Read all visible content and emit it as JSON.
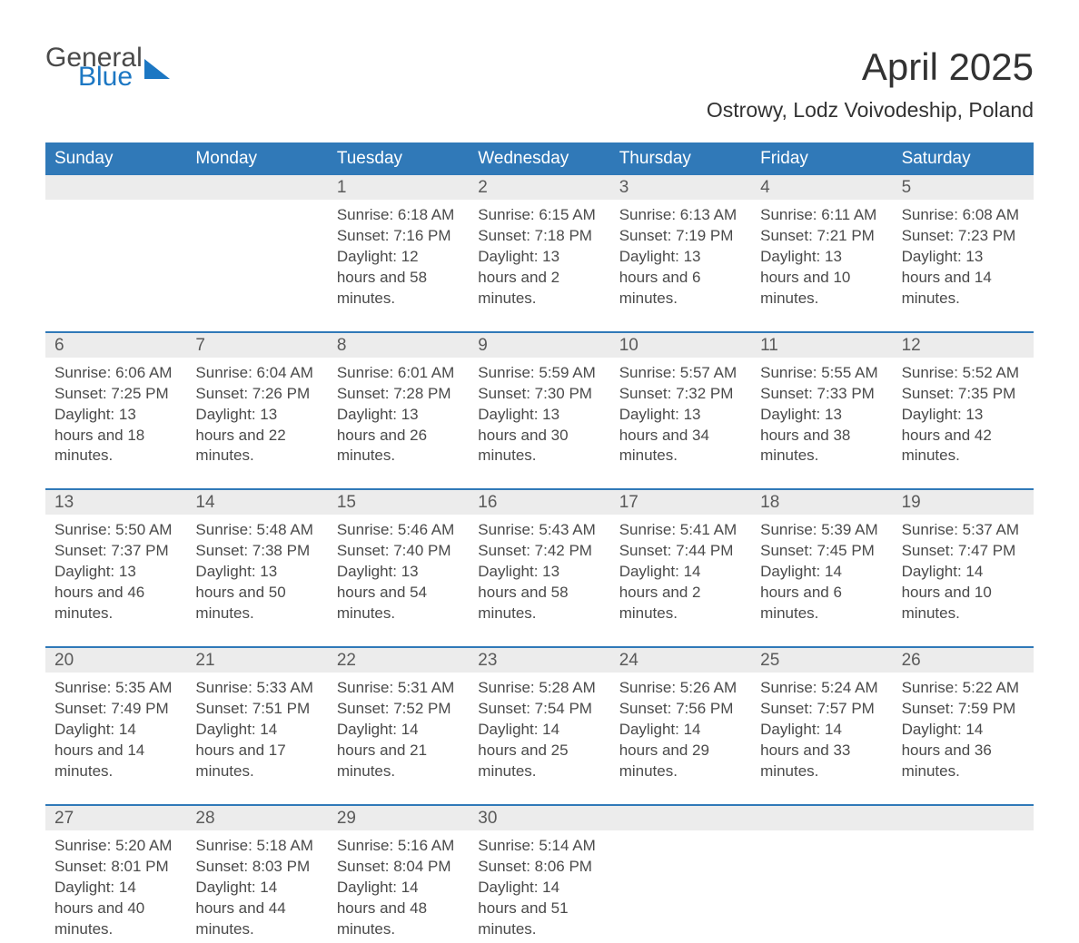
{
  "logo": {
    "line1": "General",
    "line2": "Blue"
  },
  "title": "April 2025",
  "location": "Ostrowy, Lodz Voivodeship, Poland",
  "colors": {
    "header_bg": "#3079b8",
    "header_text": "#ffffff",
    "daynum_bg": "#ececec",
    "text": "#4a4a4a",
    "rule": "#3079b8",
    "logo_blue": "#1c77c3",
    "background": "#ffffff"
  },
  "weekdays": [
    "Sunday",
    "Monday",
    "Tuesday",
    "Wednesday",
    "Thursday",
    "Friday",
    "Saturday"
  ],
  "weeks": [
    {
      "days": [
        {
          "n": "",
          "lines": []
        },
        {
          "n": "",
          "lines": []
        },
        {
          "n": "1",
          "lines": [
            "Sunrise: 6:18 AM",
            "Sunset: 7:16 PM",
            "Daylight: 12 hours and 58 minutes."
          ]
        },
        {
          "n": "2",
          "lines": [
            "Sunrise: 6:15 AM",
            "Sunset: 7:18 PM",
            "Daylight: 13 hours and 2 minutes."
          ]
        },
        {
          "n": "3",
          "lines": [
            "Sunrise: 6:13 AM",
            "Sunset: 7:19 PM",
            "Daylight: 13 hours and 6 minutes."
          ]
        },
        {
          "n": "4",
          "lines": [
            "Sunrise: 6:11 AM",
            "Sunset: 7:21 PM",
            "Daylight: 13 hours and 10 minutes."
          ]
        },
        {
          "n": "5",
          "lines": [
            "Sunrise: 6:08 AM",
            "Sunset: 7:23 PM",
            "Daylight: 13 hours and 14 minutes."
          ]
        }
      ]
    },
    {
      "days": [
        {
          "n": "6",
          "lines": [
            "Sunrise: 6:06 AM",
            "Sunset: 7:25 PM",
            "Daylight: 13 hours and 18 minutes."
          ]
        },
        {
          "n": "7",
          "lines": [
            "Sunrise: 6:04 AM",
            "Sunset: 7:26 PM",
            "Daylight: 13 hours and 22 minutes."
          ]
        },
        {
          "n": "8",
          "lines": [
            "Sunrise: 6:01 AM",
            "Sunset: 7:28 PM",
            "Daylight: 13 hours and 26 minutes."
          ]
        },
        {
          "n": "9",
          "lines": [
            "Sunrise: 5:59 AM",
            "Sunset: 7:30 PM",
            "Daylight: 13 hours and 30 minutes."
          ]
        },
        {
          "n": "10",
          "lines": [
            "Sunrise: 5:57 AM",
            "Sunset: 7:32 PM",
            "Daylight: 13 hours and 34 minutes."
          ]
        },
        {
          "n": "11",
          "lines": [
            "Sunrise: 5:55 AM",
            "Sunset: 7:33 PM",
            "Daylight: 13 hours and 38 minutes."
          ]
        },
        {
          "n": "12",
          "lines": [
            "Sunrise: 5:52 AM",
            "Sunset: 7:35 PM",
            "Daylight: 13 hours and 42 minutes."
          ]
        }
      ]
    },
    {
      "days": [
        {
          "n": "13",
          "lines": [
            "Sunrise: 5:50 AM",
            "Sunset: 7:37 PM",
            "Daylight: 13 hours and 46 minutes."
          ]
        },
        {
          "n": "14",
          "lines": [
            "Sunrise: 5:48 AM",
            "Sunset: 7:38 PM",
            "Daylight: 13 hours and 50 minutes."
          ]
        },
        {
          "n": "15",
          "lines": [
            "Sunrise: 5:46 AM",
            "Sunset: 7:40 PM",
            "Daylight: 13 hours and 54 minutes."
          ]
        },
        {
          "n": "16",
          "lines": [
            "Sunrise: 5:43 AM",
            "Sunset: 7:42 PM",
            "Daylight: 13 hours and 58 minutes."
          ]
        },
        {
          "n": "17",
          "lines": [
            "Sunrise: 5:41 AM",
            "Sunset: 7:44 PM",
            "Daylight: 14 hours and 2 minutes."
          ]
        },
        {
          "n": "18",
          "lines": [
            "Sunrise: 5:39 AM",
            "Sunset: 7:45 PM",
            "Daylight: 14 hours and 6 minutes."
          ]
        },
        {
          "n": "19",
          "lines": [
            "Sunrise: 5:37 AM",
            "Sunset: 7:47 PM",
            "Daylight: 14 hours and 10 minutes."
          ]
        }
      ]
    },
    {
      "days": [
        {
          "n": "20",
          "lines": [
            "Sunrise: 5:35 AM",
            "Sunset: 7:49 PM",
            "Daylight: 14 hours and 14 minutes."
          ]
        },
        {
          "n": "21",
          "lines": [
            "Sunrise: 5:33 AM",
            "Sunset: 7:51 PM",
            "Daylight: 14 hours and 17 minutes."
          ]
        },
        {
          "n": "22",
          "lines": [
            "Sunrise: 5:31 AM",
            "Sunset: 7:52 PM",
            "Daylight: 14 hours and 21 minutes."
          ]
        },
        {
          "n": "23",
          "lines": [
            "Sunrise: 5:28 AM",
            "Sunset: 7:54 PM",
            "Daylight: 14 hours and 25 minutes."
          ]
        },
        {
          "n": "24",
          "lines": [
            "Sunrise: 5:26 AM",
            "Sunset: 7:56 PM",
            "Daylight: 14 hours and 29 minutes."
          ]
        },
        {
          "n": "25",
          "lines": [
            "Sunrise: 5:24 AM",
            "Sunset: 7:57 PM",
            "Daylight: 14 hours and 33 minutes."
          ]
        },
        {
          "n": "26",
          "lines": [
            "Sunrise: 5:22 AM",
            "Sunset: 7:59 PM",
            "Daylight: 14 hours and 36 minutes."
          ]
        }
      ]
    },
    {
      "days": [
        {
          "n": "27",
          "lines": [
            "Sunrise: 5:20 AM",
            "Sunset: 8:01 PM",
            "Daylight: 14 hours and 40 minutes."
          ]
        },
        {
          "n": "28",
          "lines": [
            "Sunrise: 5:18 AM",
            "Sunset: 8:03 PM",
            "Daylight: 14 hours and 44 minutes."
          ]
        },
        {
          "n": "29",
          "lines": [
            "Sunrise: 5:16 AM",
            "Sunset: 8:04 PM",
            "Daylight: 14 hours and 48 minutes."
          ]
        },
        {
          "n": "30",
          "lines": [
            "Sunrise: 5:14 AM",
            "Sunset: 8:06 PM",
            "Daylight: 14 hours and 51 minutes."
          ]
        },
        {
          "n": "",
          "lines": []
        },
        {
          "n": "",
          "lines": []
        },
        {
          "n": "",
          "lines": []
        }
      ]
    }
  ]
}
